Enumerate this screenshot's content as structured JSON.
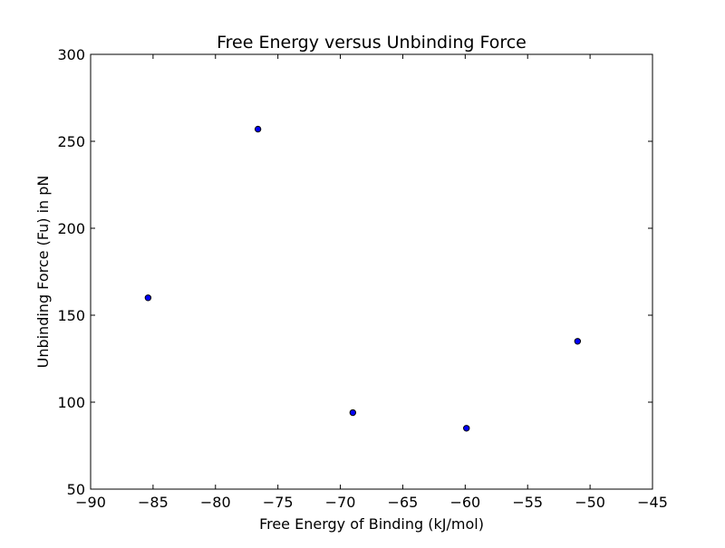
{
  "chart_data": {
    "type": "scatter",
    "title": "Free Energy versus Unbinding Force",
    "xlabel": "Free Energy of Binding (kJ/mol)",
    "ylabel": "Unbinding Force (Fu) in pN",
    "xlim": [
      -90,
      -45
    ],
    "ylim": [
      50,
      300
    ],
    "xticks": [
      -90,
      -85,
      -80,
      -75,
      -70,
      -65,
      -60,
      -55,
      -50,
      -45
    ],
    "xtick_labels": [
      "−90",
      "−85",
      "−80",
      "−75",
      "−70",
      "−65",
      "−60",
      "−55",
      "−50",
      "−45"
    ],
    "yticks": [
      50,
      100,
      150,
      200,
      250,
      300
    ],
    "ytick_labels": [
      "50",
      "100",
      "150",
      "200",
      "250",
      "300"
    ],
    "grid": false,
    "point_color": "#0000ff",
    "points": [
      {
        "x": -85.4,
        "y": 160
      },
      {
        "x": -76.6,
        "y": 257
      },
      {
        "x": -69.0,
        "y": 94
      },
      {
        "x": -59.9,
        "y": 85
      },
      {
        "x": -51.0,
        "y": 135
      }
    ]
  }
}
